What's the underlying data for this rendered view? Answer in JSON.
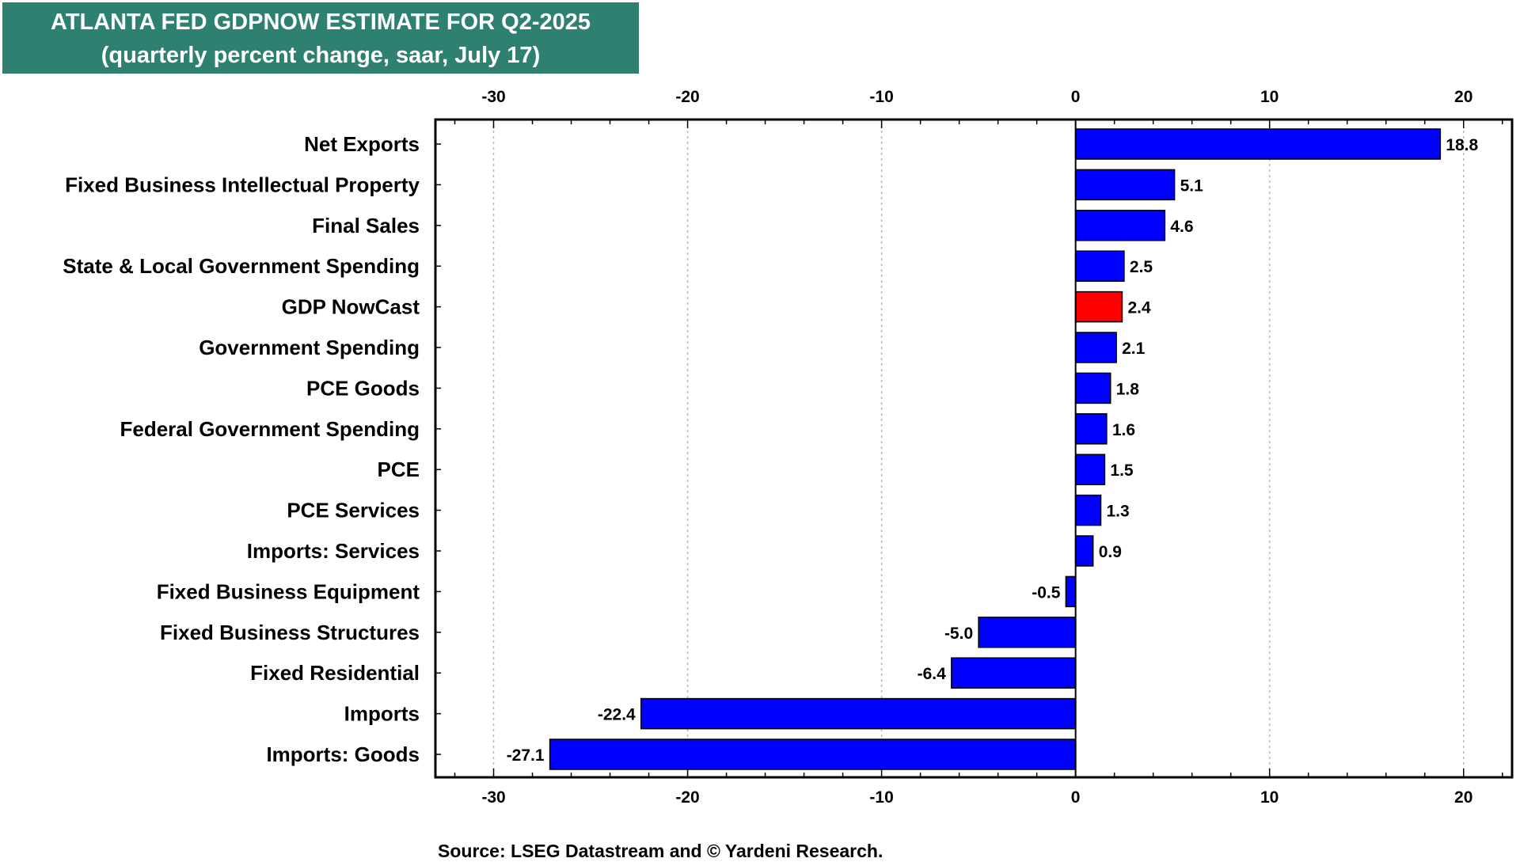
{
  "title": {
    "line1": "ATLANTA FED GDPNOW ESTIMATE FOR Q2-2025",
    "line2": "(quarterly percent change, saar, July 17)"
  },
  "colors": {
    "title_background": "#2e8070",
    "bar_default": "#0000ff",
    "bar_highlight": "#ff0000"
  },
  "chart_data": {
    "type": "bar",
    "orientation": "horizontal",
    "categories": [
      "Net Exports",
      "Fixed Business Intellectual Property",
      "Final Sales",
      "State & Local Government Spending",
      "GDP NowCast",
      "Government Spending",
      "PCE Goods",
      "Federal Government Spending",
      "PCE",
      "PCE Services",
      "Imports: Services",
      "Fixed Business Equipment",
      "Fixed Business Structures",
      "Fixed Residential",
      "Imports",
      "Imports: Goods"
    ],
    "values": [
      18.8,
      5.1,
      4.6,
      2.5,
      2.4,
      2.1,
      1.8,
      1.6,
      1.5,
      1.3,
      0.9,
      -0.5,
      -5.0,
      -6.4,
      -22.4,
      -27.1
    ],
    "value_labels": [
      "18.8",
      "5.1",
      "4.6",
      "2.5",
      "2.4",
      "2.1",
      "1.8",
      "1.6",
      "1.5",
      "1.3",
      "0.9",
      "-0.5",
      "-5.0",
      "-6.4",
      "-22.4",
      "-27.1"
    ],
    "highlight": "GDP NowCast",
    "xlim": [
      -33,
      22.5
    ],
    "xticks": [
      -30,
      -20,
      -10,
      0,
      10,
      20
    ],
    "xtick_labels": [
      "-30",
      "-20",
      "-10",
      "0",
      "10",
      "20"
    ],
    "minor_tick_step": 2,
    "axis_position": "top-and-bottom",
    "grid": "vertical-dotted",
    "legend": "none"
  },
  "source": "Source: LSEG Datastream and © Yardeni Research."
}
